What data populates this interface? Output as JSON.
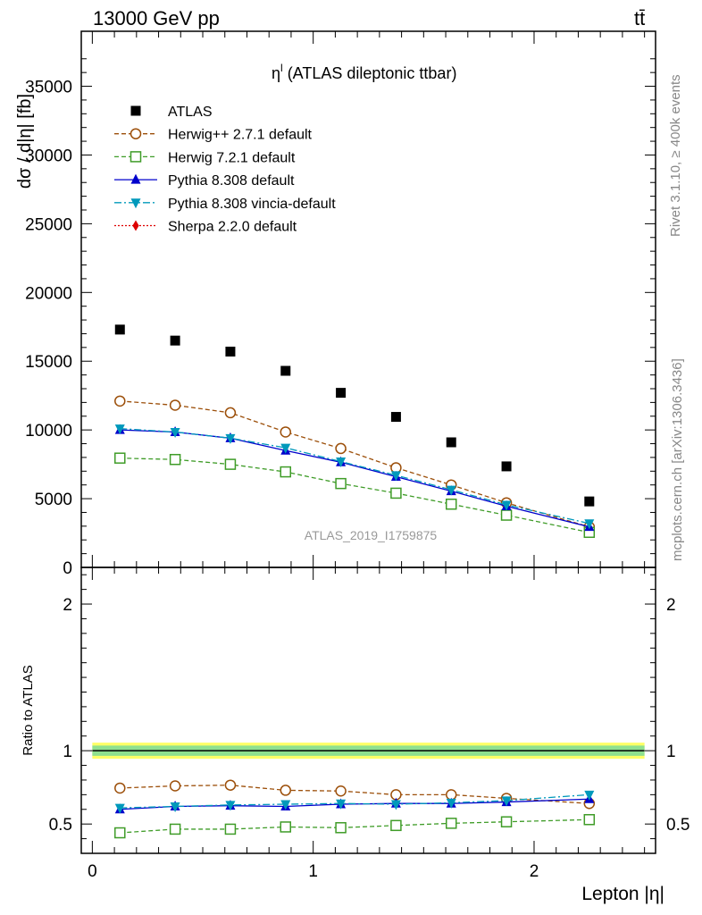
{
  "header": {
    "left": "13000 GeV pp",
    "right": "tt̄"
  },
  "side_labels": {
    "rivet": "Rivet 3.1.10, ≥ 400k events",
    "mcplots": "mcplots.cern.ch [arXiv:1306.3436]"
  },
  "chart_data": {
    "type": "scatter",
    "title": "η^l (ATLAS dileptonic ttbar)",
    "title_main": "η",
    "title_sup": "l",
    "title_rest": " (ATLAS dileptonic ttbar)",
    "watermark": "ATLAS_2019_I1759875",
    "xlabel": "Lepton |η|",
    "ylabel": "dσ / d|η| [fb]",
    "ratio_ylabel": "Ratio to ATLAS",
    "xlim": [
      -0.05,
      2.55
    ],
    "ylim": [
      0,
      39000
    ],
    "ratio_ylim": [
      0.3,
      2.25
    ],
    "x_ticks": [
      "0",
      "1",
      "2"
    ],
    "y_ticks": [
      "0",
      "5000",
      "10000",
      "15000",
      "20000",
      "25000",
      "30000",
      "35000"
    ],
    "ratio_ticks": [
      "0.5",
      "1",
      "2"
    ],
    "x": [
      0.125,
      0.375,
      0.625,
      0.875,
      1.125,
      1.375,
      1.625,
      1.875,
      2.25
    ],
    "series": [
      {
        "name": "ATLAS",
        "color": "#000000",
        "marker": "square-filled",
        "line": "none",
        "values": [
          17300,
          16500,
          15700,
          14300,
          12700,
          10950,
          9100,
          7350,
          4800
        ]
      },
      {
        "name": "Herwig++ 2.7.1 default",
        "color": "#9c4f0a",
        "marker": "circle-open",
        "line": "dashed",
        "values": [
          12100,
          11800,
          11250,
          9850,
          8650,
          7250,
          6000,
          4700,
          2950
        ],
        "ratio": [
          0.745,
          0.76,
          0.765,
          0.73,
          0.725,
          0.7,
          0.7,
          0.675,
          0.64
        ]
      },
      {
        "name": "Herwig 7.2.1 default",
        "color": "#3f9c28",
        "marker": "square-open",
        "line": "dashed",
        "values": [
          7950,
          7850,
          7500,
          6950,
          6100,
          5400,
          4600,
          3800,
          2550
        ],
        "ratio": [
          0.44,
          0.465,
          0.465,
          0.48,
          0.475,
          0.49,
          0.505,
          0.515,
          0.53
        ]
      },
      {
        "name": "Pythia 8.308 default",
        "color": "#0000cc",
        "marker": "triangle-up",
        "line": "solid",
        "values": [
          10000,
          9850,
          9400,
          8500,
          7650,
          6600,
          5550,
          4450,
          2950
        ],
        "ratio": [
          0.6,
          0.62,
          0.625,
          0.62,
          0.635,
          0.64,
          0.64,
          0.65,
          0.67
        ]
      },
      {
        "name": "Pythia 8.308 vincia-default",
        "color": "#0099bb",
        "marker": "triangle-down",
        "line": "dashdot",
        "values": [
          10100,
          9850,
          9400,
          8700,
          7700,
          6700,
          5650,
          4550,
          3200
        ],
        "ratio": [
          0.61,
          0.62,
          0.63,
          0.635,
          0.64,
          0.635,
          0.645,
          0.66,
          0.7
        ]
      },
      {
        "name": "Sherpa 2.2.0 default",
        "color": "#dd0000",
        "marker": "diamond",
        "line": "dotted",
        "values": []
      }
    ],
    "ratio_band": {
      "value": 1.0,
      "outer": 0.055,
      "inner": 0.035,
      "outer_color": "#ffff66",
      "inner_color": "#8fe08f"
    }
  }
}
